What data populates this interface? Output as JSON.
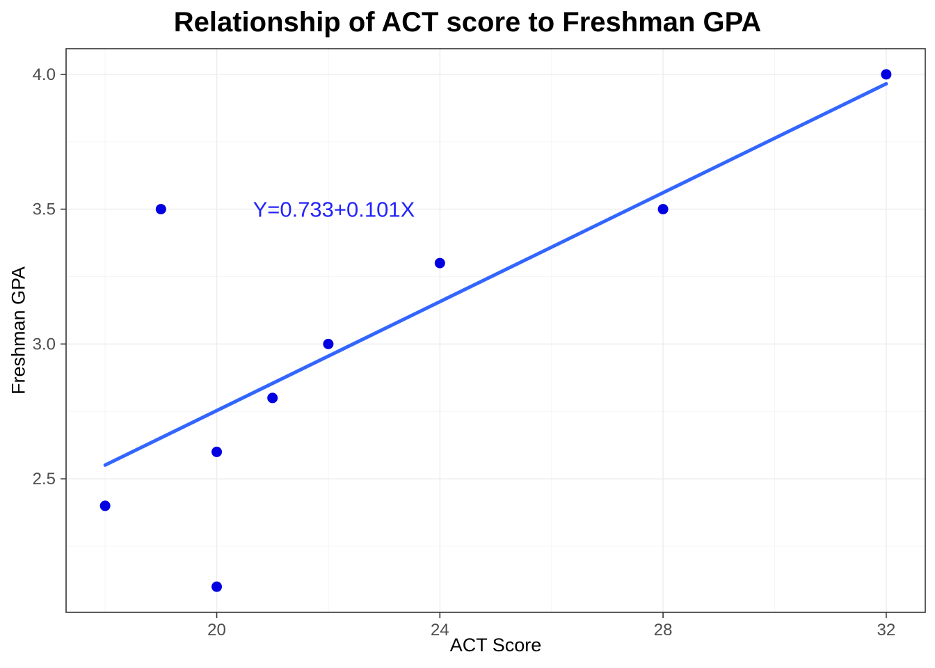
{
  "chart_data": {
    "type": "scatter",
    "title": "Relationship of ACT score to Freshman GPA",
    "xlabel": "ACT Score",
    "ylabel": "Freshman GPA",
    "points": [
      {
        "x": 18,
        "y": 2.4
      },
      {
        "x": 19,
        "y": 3.5
      },
      {
        "x": 20,
        "y": 2.6
      },
      {
        "x": 20,
        "y": 2.1
      },
      {
        "x": 21,
        "y": 2.8
      },
      {
        "x": 22,
        "y": 3.0
      },
      {
        "x": 24,
        "y": 3.3
      },
      {
        "x": 28,
        "y": 3.5
      },
      {
        "x": 32,
        "y": 4.0
      }
    ],
    "regression": {
      "intercept": 0.733,
      "slope": 0.101,
      "x_start": 18,
      "x_end": 32,
      "label": "Y=0.733+0.101X",
      "label_x": 22.1,
      "label_y": 3.5
    },
    "x_ticks": [
      {
        "value": 20,
        "label": "20"
      },
      {
        "value": 24,
        "label": "24"
      },
      {
        "value": 28,
        "label": "28"
      },
      {
        "value": 32,
        "label": "32"
      }
    ],
    "y_ticks": [
      {
        "value": 2.5,
        "label": "2.5"
      },
      {
        "value": 3.0,
        "label": "3.0"
      },
      {
        "value": 3.5,
        "label": "3.5"
      },
      {
        "value": 4.0,
        "label": "4.0"
      }
    ],
    "x_minor": [
      18,
      22,
      26,
      30
    ],
    "y_minor": [
      2.25,
      2.75,
      3.25,
      3.75
    ],
    "xlim": [
      17.3,
      32.7
    ],
    "ylim": [
      2.005,
      4.095
    ],
    "grid": true,
    "legend": "none",
    "colors": {
      "point": "#0000E0",
      "line": "#3366FF",
      "annotation": "#2424FA",
      "grid_major": "#ECECEC",
      "grid_minor": "#F5F5F5",
      "panel_border": "#333333",
      "axis_text": "#4D4D4D",
      "tick_mark": "#333333"
    }
  }
}
